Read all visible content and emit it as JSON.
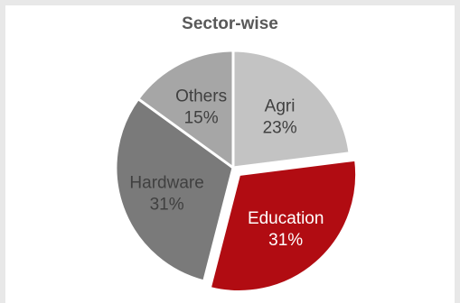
{
  "chart_data": {
    "type": "pie",
    "title": "Sector-wise",
    "slices": [
      {
        "label": "Agri",
        "value": 23,
        "value_label": "23%",
        "color": "#c3c3c3",
        "text_color": "#404040"
      },
      {
        "label": "Education",
        "value": 31,
        "value_label": "31%",
        "color": "#b10c12",
        "text_color": "#ffffff"
      },
      {
        "label": "Hardware",
        "value": 31,
        "value_label": "31%",
        "color": "#7a7a7a",
        "text_color": "#404040"
      },
      {
        "label": "Others",
        "value": 15,
        "value_label": "15%",
        "color": "#a6a6a6",
        "text_color": "#404040"
      }
    ],
    "start_angle_deg": 0,
    "direction": "clockwise",
    "exploded_slice": "Education",
    "legend": "none"
  }
}
